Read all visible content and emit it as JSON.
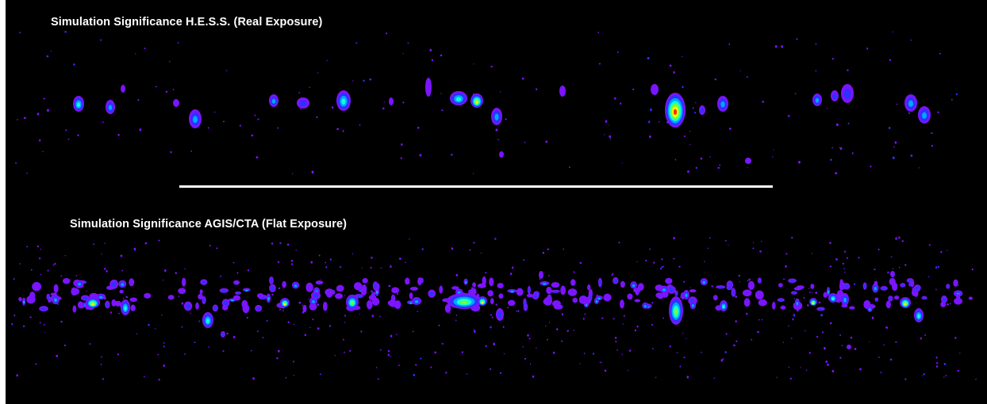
{
  "panels": {
    "top": {
      "title": "Simulation Significance H.E.S.S. (Real Exposure)"
    },
    "bottom": {
      "title": "Simulation Significance AGIS/CTA (Flat Exposure)"
    }
  },
  "colormap": [
    "#7b14ff",
    "#2a32ff",
    "#00a6ff",
    "#10ffd0",
    "#74ff3a",
    "#ffff00",
    "#ff2a00"
  ],
  "background": "#000000"
}
